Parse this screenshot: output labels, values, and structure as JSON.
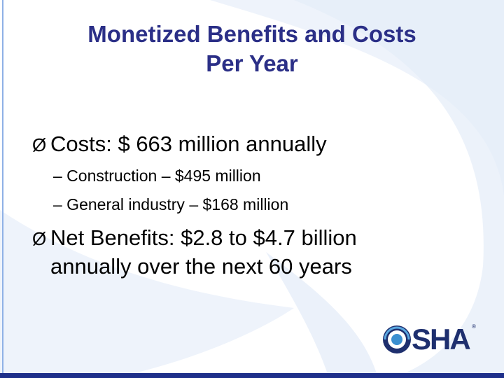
{
  "slide": {
    "title_line1": "Monetized Benefits and Costs",
    "title_line2": "Per Year",
    "bullets": [
      {
        "text": "Costs:  $ 663 million annually",
        "subitems": [
          "– Construction – $495 million",
          "– General industry – $168 million"
        ]
      },
      {
        "text_line1": "Net Benefits: $2.8 to $4.7 billion",
        "text_line2": "annually over the next 60 years"
      }
    ],
    "bullet_glyph": "Ø",
    "logo": {
      "text": "SHA",
      "reg": "®"
    }
  },
  "colors": {
    "title": "#2b2f87",
    "band": "#1e2f8a",
    "swirl": "#dbe6f6",
    "logo": "#1e2f6e"
  }
}
